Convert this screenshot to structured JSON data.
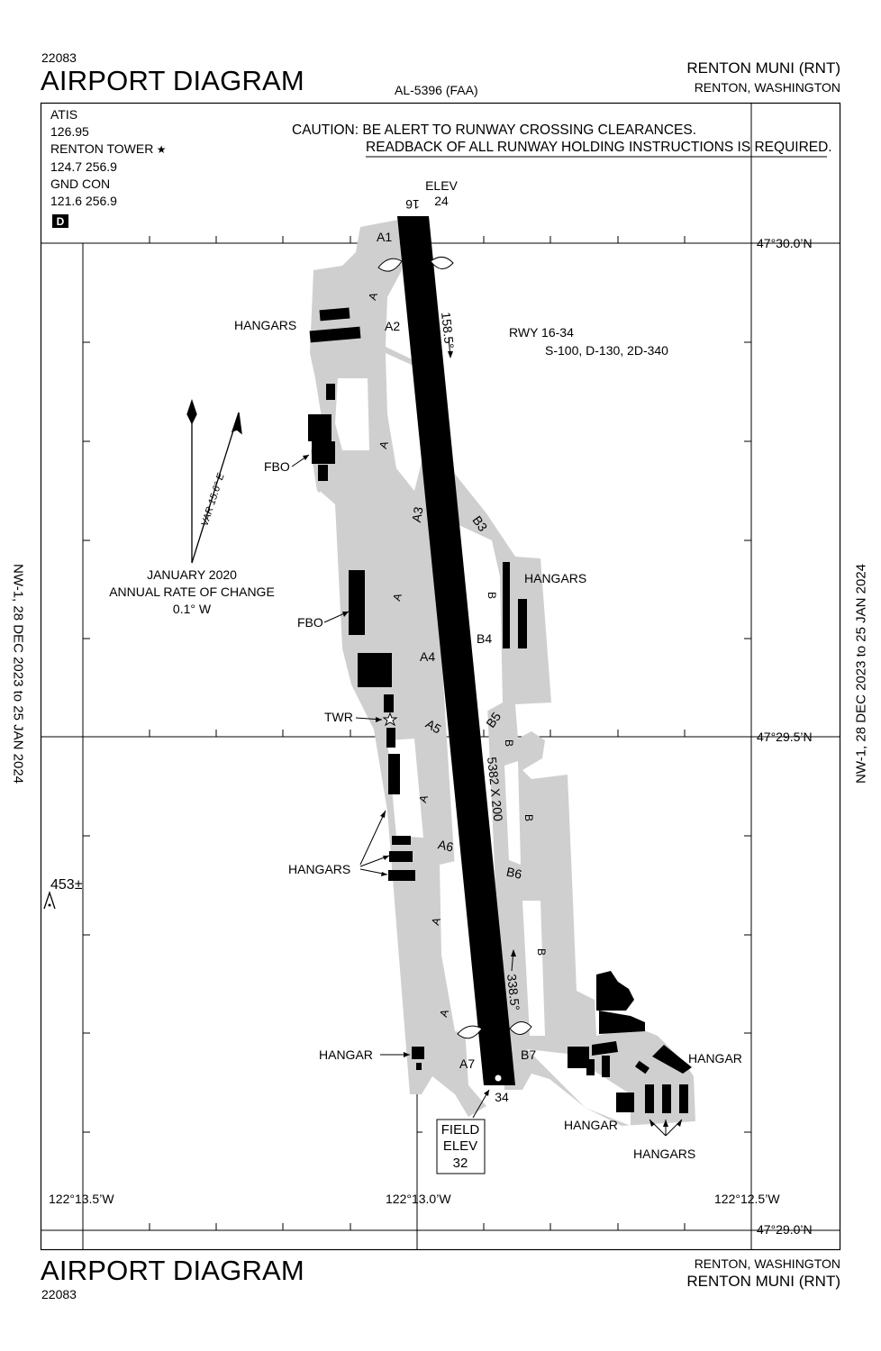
{
  "header": {
    "procedure_number": "22083",
    "title": "AIRPORT DIAGRAM",
    "chart_ref": "AL-5396 (FAA)",
    "airport_name": "RENTON MUNI (RNT)",
    "airport_city": "RENTON, WASHINGTON"
  },
  "footer": {
    "title": "AIRPORT DIAGRAM",
    "procedure_number": "22083",
    "airport_city": "RENTON, WASHINGTON",
    "airport_name": "RENTON MUNI (RNT)"
  },
  "side_text": {
    "left": "NW-1,  28 DEC 2023  to  25 JAN 2024",
    "right": "NW-1,  28 DEC 2023  to  25 JAN 2024"
  },
  "comms": {
    "atis_label": "ATIS",
    "atis_freq": "126.95",
    "tower_label": "RENTON TOWER",
    "tower_freq": "124.7  256.9",
    "gnd_label": "GND CON",
    "gnd_freq": "121.6  256.9",
    "d_box": "D"
  },
  "caution": {
    "line1": "CAUTION: BE ALERT TO RUNWAY CROSSING CLEARANCES.",
    "line2": "READBACK OF ALL RUNWAY HOLDING INSTRUCTIONS IS REQUIRED."
  },
  "grid": {
    "lat_top": "47°30.0’N",
    "lat_mid": "47°29.5’N",
    "lat_bottom": "47°29.0’N",
    "lon_left": "122°13.5’W",
    "lon_mid": "122°13.0’W",
    "lon_right": "122°12.5’W"
  },
  "runway": {
    "elev_label": "ELEV",
    "elev_16": "24",
    "rwy_16": "16",
    "rwy_34": "34",
    "hdg_north": "158.5°",
    "hdg_south": "338.5°",
    "dimensions": "5382 X 200",
    "rwy_designation": "RWY 16-34",
    "strength": "S-100, D-130, 2D-340",
    "field_elev_label1": "FIELD",
    "field_elev_label2": "ELEV",
    "field_elev_value": "32"
  },
  "magvar": {
    "var": "VAR 15.6° E",
    "rate_line1": "JANUARY 2020",
    "rate_line2": "ANNUAL RATE OF CHANGE",
    "rate_line3": "0.1° W"
  },
  "obstacle": {
    "height": "453±"
  },
  "taxiways": {
    "A1": "A1",
    "A2": "A2",
    "A3": "A3",
    "A4": "A4",
    "A5": "A5",
    "A6": "A6",
    "A7": "A7",
    "A": "A",
    "B3": "B3",
    "B4": "B4",
    "B5": "B5",
    "B6": "B6",
    "B7": "B7",
    "B": "B"
  },
  "labels": {
    "hangars": "HANGARS",
    "hangar": "HANGAR",
    "fbo": "FBO",
    "twr": "TWR"
  }
}
